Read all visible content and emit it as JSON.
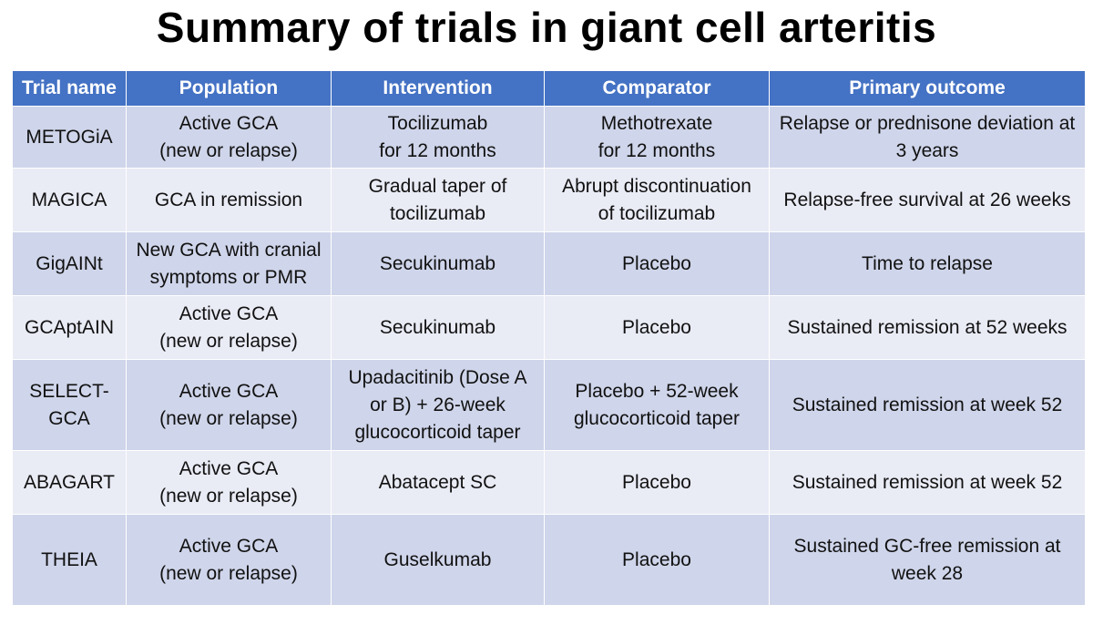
{
  "title": "Summary of trials in giant cell arteritis",
  "table": {
    "headers": [
      "Trial name",
      "Population",
      "Intervention",
      "Comparator",
      "Primary outcome"
    ],
    "rows": [
      [
        "METOGiA",
        "Active GCA\n(new or relapse)",
        "Tocilizumab\nfor 12 months",
        "Methotrexate\nfor 12 months",
        "Relapse or prednisone deviation at\n3 years"
      ],
      [
        "MAGICA",
        "GCA in remission",
        "Gradual taper of\ntocilizumab",
        "Abrupt discontinuation\nof tocilizumab",
        "Relapse-free survival at 26 weeks"
      ],
      [
        "GigAINt",
        "New GCA with cranial\nsymptoms or PMR",
        "Secukinumab",
        "Placebo",
        "Time to relapse"
      ],
      [
        "GCAptAIN",
        "Active GCA\n(new or relapse)",
        "Secukinumab",
        "Placebo",
        "Sustained remission at 52 weeks"
      ],
      [
        "SELECT-\nGCA",
        "Active GCA\n(new or relapse)",
        "Upadacitinib (Dose A\nor B) + 26-week\nglucocorticoid taper",
        "Placebo + 52-week\nglucocorticoid taper",
        "Sustained remission at week 52"
      ],
      [
        "ABAGART",
        "Active GCA\n(new or relapse)",
        "Abatacept SC",
        "Placebo",
        "Sustained remission at week 52"
      ],
      [
        "THEIA",
        "Active GCA\n(new or relapse)",
        "Guselkumab",
        "Placebo",
        "Sustained GC-free remission at\nweek 28"
      ]
    ]
  }
}
